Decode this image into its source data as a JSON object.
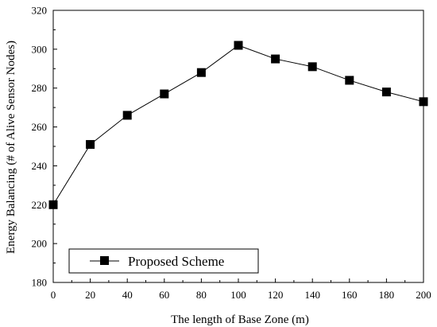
{
  "chart_data": {
    "type": "line",
    "title": "",
    "xlabel": "The length of Base Zone (m)",
    "ylabel": "Energy Balancing (# of Alive Sensor Nodes)",
    "xlim": [
      0,
      200
    ],
    "ylim": [
      180,
      320
    ],
    "x_ticks": [
      0,
      20,
      40,
      60,
      80,
      100,
      120,
      140,
      160,
      180,
      200
    ],
    "y_ticks": [
      180,
      200,
      220,
      240,
      260,
      280,
      300,
      320
    ],
    "grid": false,
    "legend_position": "bottom-left",
    "series": [
      {
        "name": "Proposed Scheme",
        "marker": "square",
        "color": "#000000",
        "x": [
          0,
          20,
          40,
          60,
          80,
          100,
          120,
          140,
          160,
          180,
          200
        ],
        "y": [
          220,
          251,
          266,
          277,
          288,
          302,
          295,
          291,
          284,
          278,
          273
        ]
      }
    ]
  }
}
